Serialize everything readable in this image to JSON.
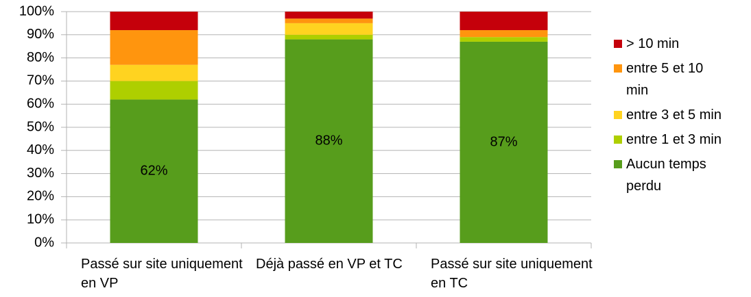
{
  "chart_data": {
    "type": "stacked_bar",
    "categories": [
      "Passé sur site uniquement en VP",
      "Déjà passé en VP et TC",
      "Passé sur site uniquement en TC"
    ],
    "series": [
      {
        "name": "Aucun temps perdu",
        "color": "#579d1c",
        "values": [
          62,
          88,
          87
        ],
        "value_labels": [
          "62%",
          "88%",
          "87%"
        ]
      },
      {
        "name": "entre 1 et 3 min",
        "color": "#aecf00",
        "values": [
          8,
          2,
          2
        ]
      },
      {
        "name": "entre 3 et 5 min",
        "color": "#ffd320",
        "values": [
          7,
          5,
          0
        ]
      },
      {
        "name": "entre 5 et 10 min",
        "color": "#ff950e",
        "values": [
          15,
          2,
          3
        ]
      },
      {
        "name": "> 10 min",
        "color": "#c5000b",
        "values": [
          8,
          3,
          8
        ]
      }
    ],
    "ylim": [
      0,
      100
    ],
    "yticks": [
      {
        "value": 0,
        "label": "0%"
      },
      {
        "value": 10,
        "label": "10%"
      },
      {
        "value": 20,
        "label": "20%"
      },
      {
        "value": 30,
        "label": "30%"
      },
      {
        "value": 40,
        "label": "40%"
      },
      {
        "value": 50,
        "label": "50%"
      },
      {
        "value": 60,
        "label": "60%"
      },
      {
        "value": 70,
        "label": "70%"
      },
      {
        "value": 80,
        "label": "80%"
      },
      {
        "value": 90,
        "label": "90%"
      },
      {
        "value": 100,
        "label": "100%"
      }
    ],
    "grid": true,
    "legend": "right"
  }
}
